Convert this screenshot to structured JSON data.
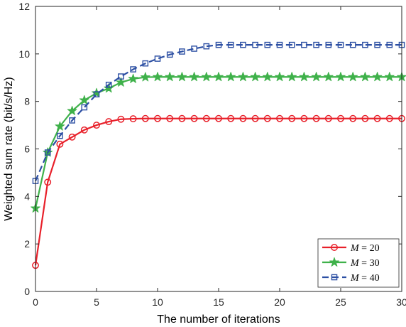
{
  "chart_data": {
    "type": "line",
    "title": "",
    "xlabel": "The number of iterations",
    "ylabel": "Weighted sum rate (bit/s/Hz)",
    "xlim": [
      0,
      30
    ],
    "ylim": [
      0,
      12
    ],
    "xticks": [
      0,
      5,
      10,
      15,
      20,
      25,
      30
    ],
    "yticks": [
      0,
      2,
      4,
      6,
      8,
      10,
      12
    ],
    "grid": false,
    "legend_position": "bottom-right",
    "x": [
      0,
      1,
      2,
      3,
      4,
      5,
      6,
      7,
      8,
      9,
      10,
      11,
      12,
      13,
      14,
      15,
      16,
      17,
      18,
      19,
      20,
      21,
      22,
      23,
      24,
      25,
      26,
      27,
      28,
      29,
      30
    ],
    "series": [
      {
        "name": "M = 20",
        "name_var": "M",
        "name_value": "20",
        "color": "#e8202a",
        "marker": "circle",
        "line_style": "solid",
        "values": [
          1.1,
          4.6,
          6.2,
          6.5,
          6.8,
          7.0,
          7.15,
          7.25,
          7.27,
          7.28,
          7.28,
          7.28,
          7.28,
          7.28,
          7.28,
          7.28,
          7.28,
          7.28,
          7.28,
          7.28,
          7.28,
          7.28,
          7.28,
          7.28,
          7.28,
          7.28,
          7.28,
          7.28,
          7.28,
          7.28,
          7.28
        ]
      },
      {
        "name": "M = 30",
        "name_var": "M",
        "name_value": "30",
        "color": "#3fb14a",
        "marker": "star",
        "line_style": "solid",
        "values": [
          3.5,
          5.85,
          6.95,
          7.6,
          8.05,
          8.35,
          8.55,
          8.8,
          8.95,
          9.02,
          9.03,
          9.03,
          9.03,
          9.03,
          9.03,
          9.03,
          9.03,
          9.03,
          9.03,
          9.03,
          9.03,
          9.03,
          9.03,
          9.03,
          9.03,
          9.03,
          9.03,
          9.03,
          9.03,
          9.03,
          9.03
        ]
      },
      {
        "name": "M = 40",
        "name_var": "M",
        "name_value": "40",
        "color": "#2c4fa3",
        "marker": "square",
        "line_style": "dashed",
        "values": [
          4.65,
          5.85,
          6.55,
          7.2,
          7.75,
          8.3,
          8.7,
          9.05,
          9.35,
          9.6,
          9.8,
          9.97,
          10.1,
          10.22,
          10.32,
          10.38,
          10.38,
          10.38,
          10.38,
          10.38,
          10.38,
          10.38,
          10.38,
          10.38,
          10.38,
          10.38,
          10.38,
          10.38,
          10.38,
          10.38,
          10.38
        ]
      }
    ]
  }
}
